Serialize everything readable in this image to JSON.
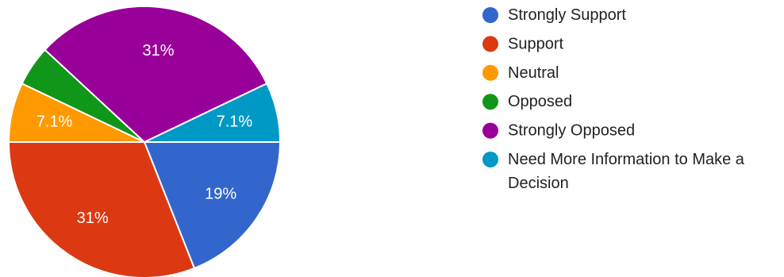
{
  "chart_data": {
    "type": "pie",
    "categories": [
      "Strongly Support",
      "Support",
      "Neutral",
      "Opposed",
      "Strongly Opposed",
      "Need More Information to Make a Decision"
    ],
    "values": [
      19,
      31,
      7.1,
      4.8,
      31,
      7.1
    ],
    "labels": [
      "19%",
      "31%",
      "7.1%",
      "",
      "31%",
      "7.1%"
    ],
    "colors": [
      "#3366cc",
      "#dc3912",
      "#ff9900",
      "#109618",
      "#990099",
      "#0099c6"
    ],
    "legend_lines": [
      [
        "Strongly Support"
      ],
      [
        "Support"
      ],
      [
        "Neutral"
      ],
      [
        "Opposed"
      ],
      [
        "Strongly Opposed"
      ],
      [
        "Need More Information to Make a",
        "Decision"
      ]
    ],
    "legend_position": "right",
    "start_angle_deg": 0,
    "direction": "clockwise"
  }
}
